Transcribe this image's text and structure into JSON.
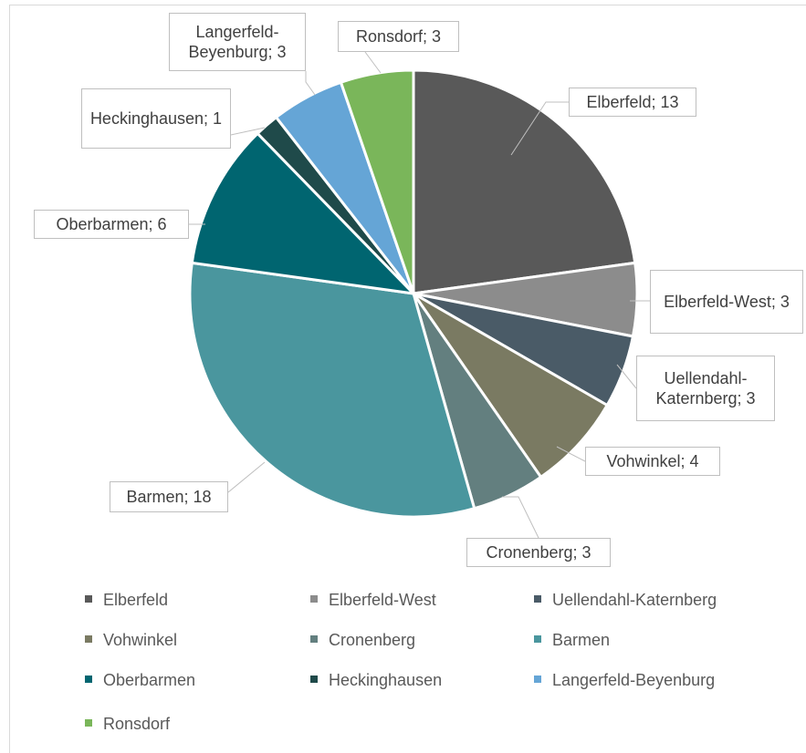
{
  "chart_data": {
    "type": "pie",
    "categories": [
      "Elberfeld",
      "Elberfeld-West",
      "Uellendahl-Katernberg",
      "Vohwinkel",
      "Cronenberg",
      "Barmen",
      "Oberbarmen",
      "Heckinghausen",
      "Langerfeld-Beyenburg",
      "Ronsdorf"
    ],
    "values": [
      13,
      3,
      3,
      4,
      3,
      18,
      6,
      1,
      3,
      3
    ],
    "value_labels": [
      "Elberfeld; 13",
      "Elberfeld-West; 3",
      "Uellendahl-Katernberg; 3",
      "Vohwinkel; 4",
      "Cronenberg; 3",
      "Barmen; 18",
      "Oberbarmen; 6",
      "Heckinghausen; 1",
      "Langerfeld-Beyenburg; 3",
      "Ronsdorf; 3"
    ],
    "colors": [
      "#595959",
      "#8c8c8c",
      "#4a5b67",
      "#7a7a62",
      "#637f7f",
      "#4a969e",
      "#006570",
      "#1f4a4a",
      "#65a5d6",
      "#7ab65a"
    ],
    "legend": "bottom"
  }
}
